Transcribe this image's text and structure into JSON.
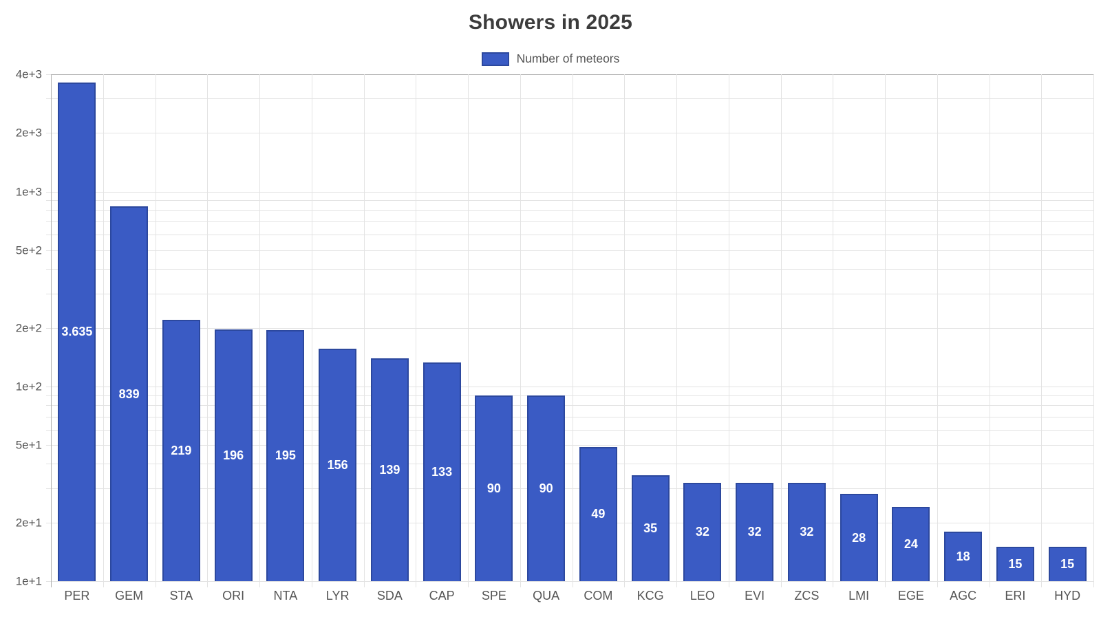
{
  "colors": {
    "bar_fill": "#3a5bc4",
    "bar_border": "#2c489e",
    "grid": "#e3e3e3",
    "axis_border": "#b0b0b0",
    "title_text": "#3c3c3c",
    "tick_text": "#555555",
    "value_label": "#ffffff",
    "background": "#ffffff"
  },
  "chart_data": {
    "type": "bar",
    "title": "Showers in 2025",
    "series_name": "Number of meteors",
    "categories": [
      "PER",
      "GEM",
      "STA",
      "ORI",
      "NTA",
      "LYR",
      "SDA",
      "CAP",
      "SPE",
      "QUA",
      "COM",
      "KCG",
      "LEO",
      "EVI",
      "ZCS",
      "LMI",
      "EGE",
      "AGC",
      "ERI",
      "HYD"
    ],
    "values": [
      3635,
      839,
      219,
      196,
      195,
      156,
      139,
      133,
      90,
      90,
      49,
      35,
      32,
      32,
      32,
      28,
      24,
      18,
      15,
      15
    ],
    "value_labels": [
      "3.635",
      "839",
      "219",
      "196",
      "195",
      "156",
      "139",
      "133",
      "90",
      "90",
      "49",
      "35",
      "32",
      "32",
      "32",
      "28",
      "24",
      "18",
      "15",
      "15"
    ],
    "xlabel": "",
    "ylabel": "",
    "yscale": "log",
    "ylim": [
      10,
      4000
    ],
    "yticks": [
      {
        "value": 4000,
        "label": "4e+3"
      },
      {
        "value": 2000,
        "label": "2e+3"
      },
      {
        "value": 1000,
        "label": "1e+3"
      },
      {
        "value": 500,
        "label": "5e+2"
      },
      {
        "value": 200,
        "label": "2e+2"
      },
      {
        "value": 100,
        "label": "1e+2"
      },
      {
        "value": 50,
        "label": "5e+1"
      },
      {
        "value": 20,
        "label": "2e+1"
      },
      {
        "value": 10,
        "label": "1e+1"
      }
    ],
    "minor_gridlines": [
      3000,
      900,
      800,
      700,
      600,
      400,
      300,
      90,
      80,
      70,
      60,
      40,
      30
    ],
    "grid": true,
    "legend_position": "top"
  }
}
